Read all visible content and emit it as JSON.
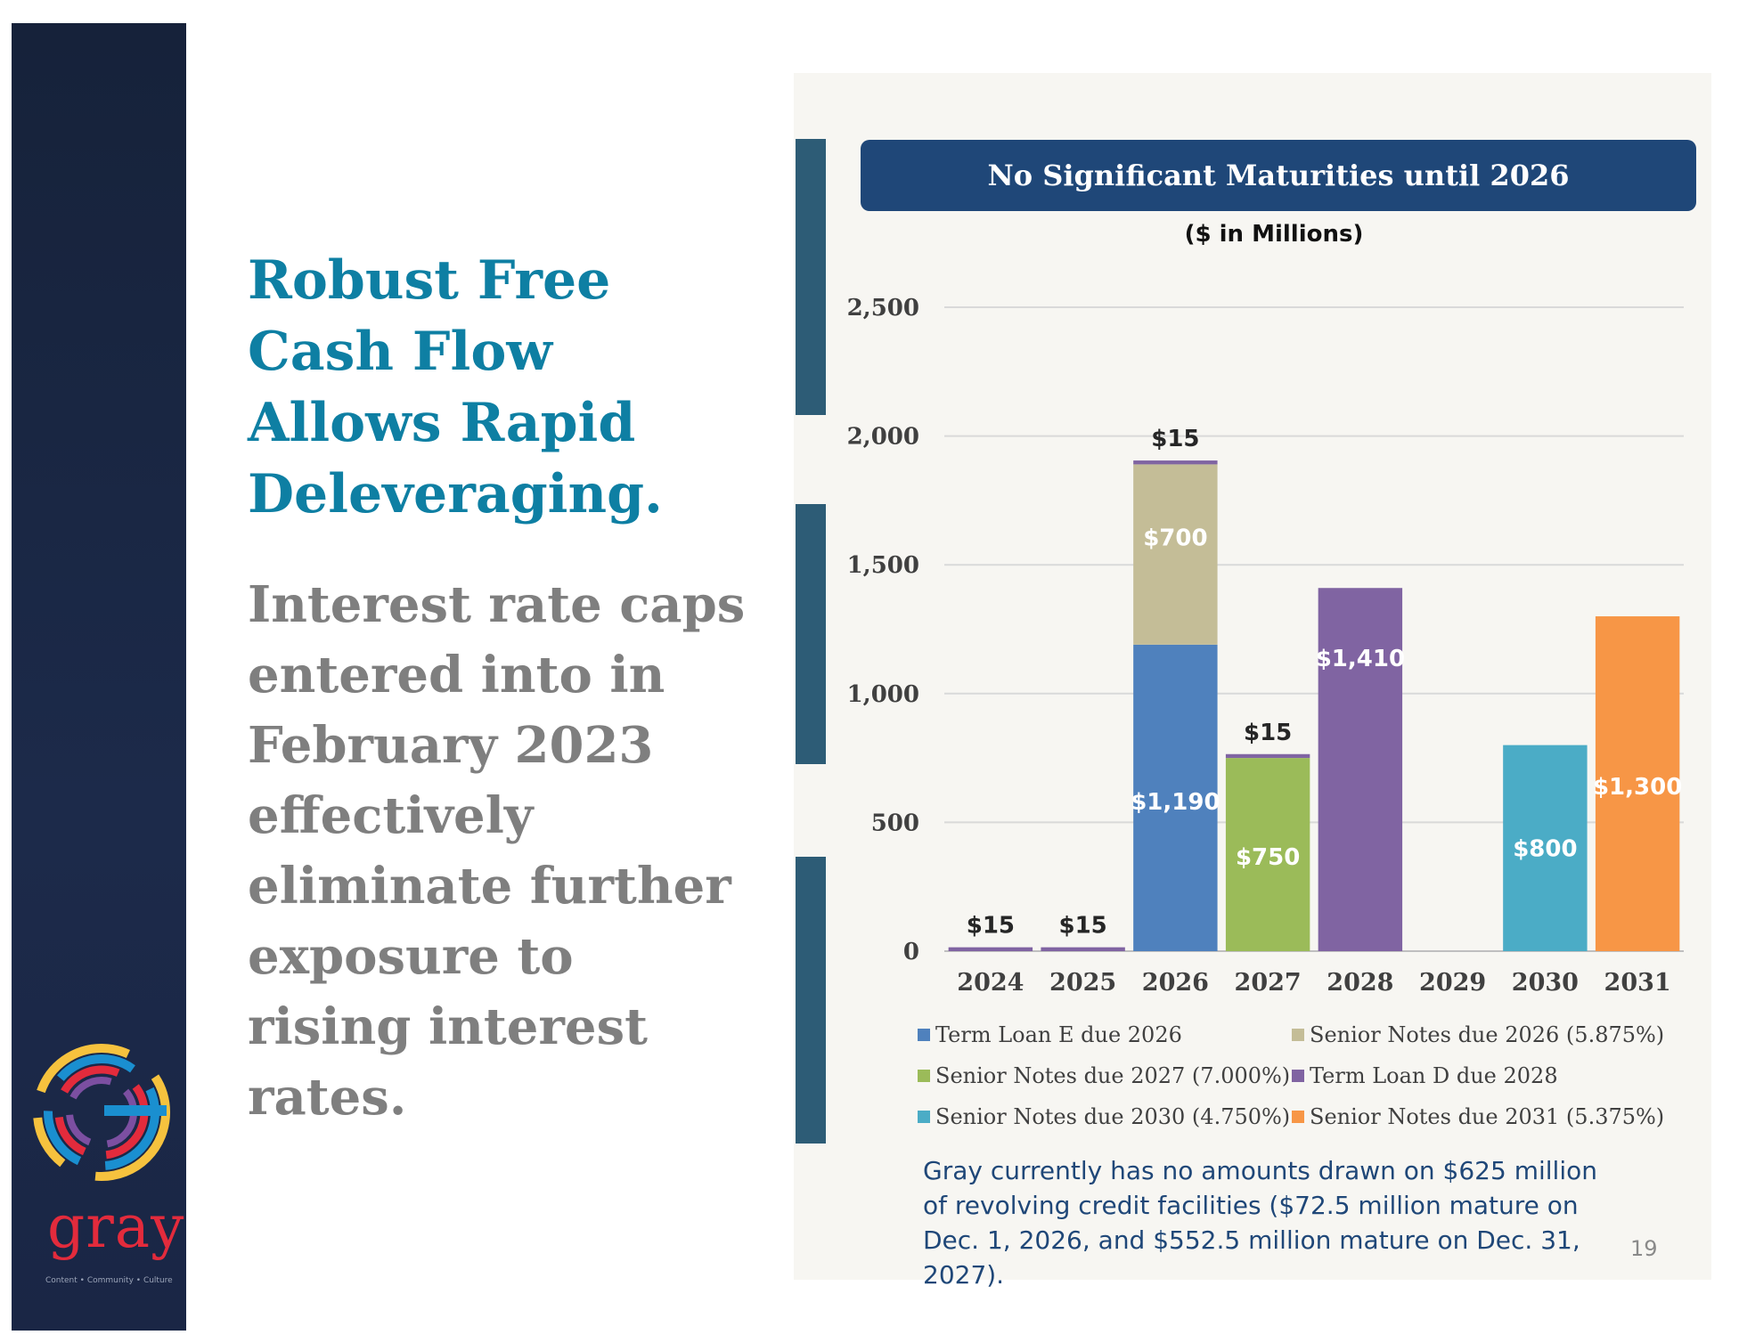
{
  "headline": "Robust Free Cash Flow Allows Rapid Deleveraging.",
  "body_text": "Interest rate caps entered into in February 2023 effectively eliminate further exposure to rising interest rates.",
  "logo": {
    "word": "gray",
    "tagline": "Content • Community • Culture"
  },
  "banner_title": "No Significant Maturities until 2026",
  "note": "Gray currently has no amounts drawn on $625 million of revolving credit facilities ($72.5 million mature on Dec. 1, 2026, and $552.5 million mature on Dec. 31, 2027).",
  "page_number": "19",
  "chart_data": {
    "type": "bar",
    "stacked": true,
    "title": "No Significant Maturities until 2026",
    "subtitle": "($ in Millions)",
    "categories": [
      "2024",
      "2025",
      "2026",
      "2027",
      "2028",
      "2029",
      "2030",
      "2031"
    ],
    "ylim": [
      0,
      2500
    ],
    "yticks": [
      0,
      500,
      1000,
      1500,
      2000,
      2500
    ],
    "ytick_labels": [
      "0",
      "500",
      "1,000",
      "1,500",
      "2,000",
      "2,500"
    ],
    "grid": true,
    "legend_position": "bottom",
    "series": [
      {
        "name": "Term Loan E due 2026",
        "color": "#4f81bd",
        "values": [
          0,
          0,
          1190,
          0,
          0,
          0,
          0,
          0
        ],
        "labels": [
          "",
          "",
          "$1,190",
          "",
          "",
          "",
          "",
          ""
        ],
        "label_color": "#ffffff"
      },
      {
        "name": "Senior Notes due 2026 (5.875%)",
        "color": "#c4bd97",
        "values": [
          0,
          0,
          700,
          0,
          0,
          0,
          0,
          0
        ],
        "labels": [
          "",
          "",
          "$700",
          "",
          "",
          "",
          "",
          ""
        ],
        "label_color": "#ffffff"
      },
      {
        "name": "Senior Notes due 2027 (7.000%)",
        "color": "#9bbb59",
        "values": [
          0,
          0,
          0,
          750,
          0,
          0,
          0,
          0
        ],
        "labels": [
          "",
          "",
          "",
          "$750",
          "",
          "",
          "",
          ""
        ],
        "label_color": "#ffffff"
      },
      {
        "name": "Term Loan D due 2028",
        "color": "#8064a2",
        "values": [
          15,
          15,
          15,
          15,
          1410,
          0,
          0,
          0
        ],
        "labels": [
          "$15",
          "$15",
          "$15",
          "$15",
          "$1,410",
          "",
          "",
          ""
        ],
        "label_color": "#ffffff"
      },
      {
        "name": "Senior Notes due 2030 (4.750%)",
        "color": "#4bacc6",
        "values": [
          0,
          0,
          0,
          0,
          0,
          0,
          800,
          0
        ],
        "labels": [
          "",
          "",
          "",
          "",
          "",
          "",
          "$800",
          ""
        ],
        "label_color": "#ffffff"
      },
      {
        "name": "Senior Notes due 2031 (5.375%)",
        "color": "#f79646",
        "values": [
          0,
          0,
          0,
          0,
          0,
          0,
          0,
          1300
        ],
        "labels": [
          "",
          "",
          "",
          "",
          "",
          "",
          "",
          "$1,300"
        ],
        "label_color": "#ffffff"
      }
    ]
  }
}
